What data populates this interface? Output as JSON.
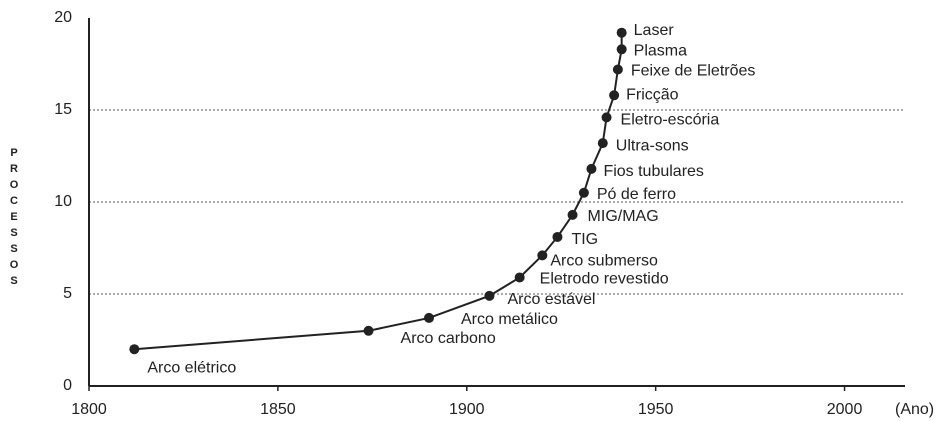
{
  "chart_data": {
    "type": "line",
    "ylabel": "PROCESSOS",
    "xlabel": "(Ano)",
    "x": [
      1812,
      1874,
      1890,
      1906,
      1914,
      1920,
      1924,
      1928,
      1931,
      1933,
      1936,
      1937,
      1939,
      1940,
      1941,
      1941
    ],
    "series": [
      {
        "name": null,
        "color": "#222222",
        "values": [
          2.0,
          3.0,
          3.7,
          4.9,
          5.9,
          7.1,
          8.1,
          9.3,
          10.5,
          11.8,
          13.2,
          14.6,
          15.8,
          17.2,
          18.3,
          19.2
        ],
        "labels": [
          "Arco elétrico",
          "Arco carbono",
          "Arco metálico",
          "Arco estável",
          "Eletrodo revestido",
          "Arco submerso",
          "TIG",
          "MIG/MAG",
          "Pó de ferro",
          "Fios tubulares",
          "Ultra-sons",
          "Eletro-escória",
          "Fricção",
          "Feixe de Eletrões",
          "Plasma",
          "Laser"
        ]
      }
    ],
    "xlim": [
      1800,
      2016
    ],
    "xticks": [
      1800,
      1850,
      1900,
      1950,
      2000
    ],
    "ylim": [
      0,
      20
    ],
    "yticks": [
      0,
      5,
      10,
      15,
      20
    ],
    "grid": true
  }
}
